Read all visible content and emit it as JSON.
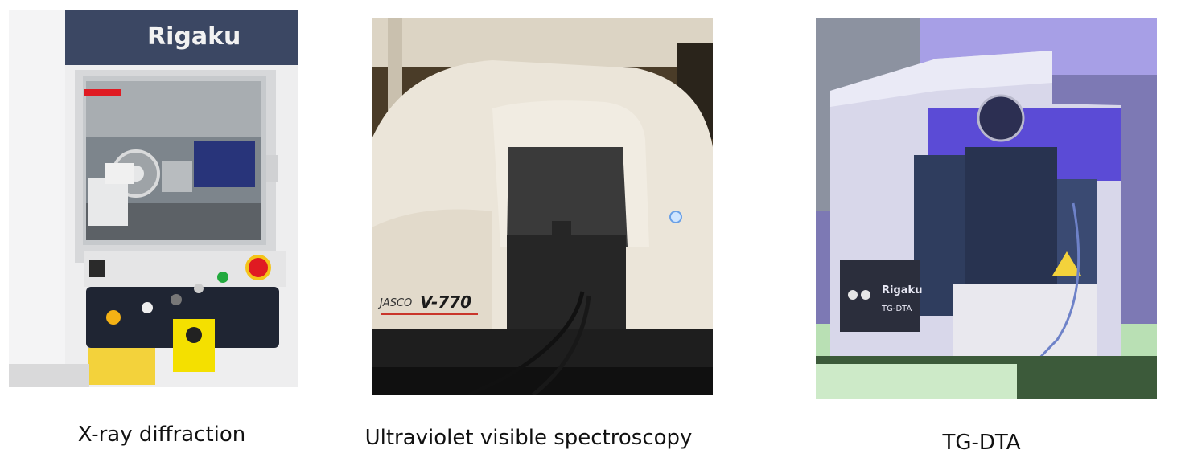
{
  "panels": [
    {
      "caption": "X-ray diffraction",
      "logo_text": "Rigaku",
      "colors": {
        "frame": "#3b4763",
        "body": "#e9e9ea",
        "accent": "#e01a22"
      }
    },
    {
      "caption": "Ultraviolet visible spectroscopy",
      "logo_text": "JASCO",
      "model_text": "V-770",
      "colors": {
        "body": "#e9e3d8",
        "dark": "#2b2b2b",
        "bg": "#5a4a32"
      }
    },
    {
      "caption": "TG-DTA",
      "logo_text": "Rigaku",
      "model_text": "TG-DTA",
      "colors": {
        "body": "#dcdcec",
        "purple": "#5b4bd6",
        "dark": "#2f3d5e"
      }
    }
  ]
}
